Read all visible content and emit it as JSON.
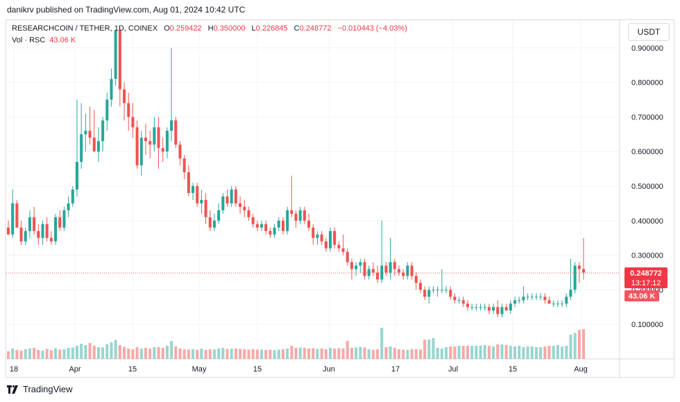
{
  "header": {
    "published": "danikrv published on TradingView.com, Aug 01, 2024 10:42 UTC"
  },
  "legend": {
    "symbol": "RESEARCHCOIN / TETHER, 1D, COINEX",
    "o_label": "O",
    "o_value": "0.259422",
    "h_label": "H",
    "h_value": "0.350000",
    "l_label": "L",
    "l_value": "0.226845",
    "c_label": "C",
    "c_value": "0.248772",
    "change": "−0.010443 (−4.03%)",
    "vol_label": "Vol · RSC",
    "vol_value": "43.06 K"
  },
  "currency_button": "USDT",
  "footer": {
    "brand": "TradingView"
  },
  "colors": {
    "up": "#26a69a",
    "down": "#ef5350",
    "up_vol": "#99d5cf",
    "down_vol": "#f7a9a7",
    "grid": "#f0f3fa"
  },
  "chart_data": {
    "type": "candlestick",
    "y_ticks": [
      "0.100000",
      "0.200000",
      "0.300000",
      "0.400000",
      "0.500000",
      "0.600000",
      "0.700000",
      "0.800000",
      "0.900000"
    ],
    "ylim": [
      0.0,
      0.98
    ],
    "x_ticks": [
      "18",
      "Apr",
      "15",
      "May",
      "15",
      "Jun",
      "17",
      "Jul",
      "15",
      "Aug"
    ],
    "last_price": "0.248772",
    "countdown": "13:17:12",
    "last_volume": "43.06 K",
    "ohlc": [
      [
        0.38,
        0.4,
        0.36,
        0.36
      ],
      [
        0.36,
        0.49,
        0.35,
        0.45
      ],
      [
        0.45,
        0.46,
        0.38,
        0.38
      ],
      [
        0.38,
        0.4,
        0.33,
        0.34
      ],
      [
        0.34,
        0.38,
        0.33,
        0.37
      ],
      [
        0.37,
        0.43,
        0.35,
        0.41
      ],
      [
        0.41,
        0.44,
        0.36,
        0.37
      ],
      [
        0.37,
        0.39,
        0.33,
        0.35
      ],
      [
        0.35,
        0.4,
        0.33,
        0.39
      ],
      [
        0.39,
        0.41,
        0.34,
        0.35
      ],
      [
        0.35,
        0.37,
        0.33,
        0.34
      ],
      [
        0.34,
        0.42,
        0.33,
        0.41
      ],
      [
        0.41,
        0.43,
        0.37,
        0.38
      ],
      [
        0.38,
        0.44,
        0.37,
        0.43
      ],
      [
        0.43,
        0.47,
        0.41,
        0.45
      ],
      [
        0.45,
        0.5,
        0.44,
        0.49
      ],
      [
        0.49,
        0.75,
        0.47,
        0.57
      ],
      [
        0.57,
        0.74,
        0.55,
        0.65
      ],
      [
        0.65,
        0.71,
        0.6,
        0.66
      ],
      [
        0.66,
        0.73,
        0.62,
        0.64
      ],
      [
        0.64,
        0.72,
        0.6,
        0.6
      ],
      [
        0.6,
        0.67,
        0.57,
        0.63
      ],
      [
        0.63,
        0.7,
        0.6,
        0.69
      ],
      [
        0.69,
        0.77,
        0.66,
        0.75
      ],
      [
        0.75,
        0.84,
        0.73,
        0.81
      ],
      [
        0.81,
        0.95,
        0.79,
        0.95
      ],
      [
        0.95,
        0.96,
        0.73,
        0.78
      ],
      [
        0.78,
        0.8,
        0.69,
        0.74
      ],
      [
        0.74,
        0.77,
        0.66,
        0.7
      ],
      [
        0.7,
        0.74,
        0.64,
        0.67
      ],
      [
        0.67,
        0.69,
        0.55,
        0.56
      ],
      [
        0.56,
        0.66,
        0.53,
        0.64
      ],
      [
        0.64,
        0.68,
        0.59,
        0.63
      ],
      [
        0.63,
        0.66,
        0.58,
        0.62
      ],
      [
        0.62,
        0.7,
        0.6,
        0.67
      ],
      [
        0.67,
        0.7,
        0.55,
        0.61
      ],
      [
        0.61,
        0.64,
        0.57,
        0.6
      ],
      [
        0.6,
        0.67,
        0.58,
        0.66
      ],
      [
        0.66,
        0.9,
        0.63,
        0.69
      ],
      [
        0.69,
        0.7,
        0.61,
        0.62
      ],
      [
        0.62,
        0.63,
        0.56,
        0.58
      ],
      [
        0.58,
        0.59,
        0.52,
        0.54
      ],
      [
        0.54,
        0.56,
        0.47,
        0.48
      ],
      [
        0.48,
        0.51,
        0.46,
        0.5
      ],
      [
        0.5,
        0.51,
        0.44,
        0.45
      ],
      [
        0.45,
        0.49,
        0.42,
        0.46
      ],
      [
        0.46,
        0.48,
        0.39,
        0.41
      ],
      [
        0.41,
        0.43,
        0.37,
        0.38
      ],
      [
        0.38,
        0.42,
        0.37,
        0.4
      ],
      [
        0.4,
        0.45,
        0.39,
        0.43
      ],
      [
        0.43,
        0.48,
        0.42,
        0.47
      ],
      [
        0.47,
        0.49,
        0.44,
        0.45
      ],
      [
        0.45,
        0.5,
        0.44,
        0.49
      ],
      [
        0.49,
        0.5,
        0.44,
        0.45
      ],
      [
        0.45,
        0.47,
        0.42,
        0.44
      ],
      [
        0.44,
        0.46,
        0.41,
        0.43
      ],
      [
        0.43,
        0.44,
        0.4,
        0.41
      ],
      [
        0.41,
        0.42,
        0.38,
        0.39
      ],
      [
        0.39,
        0.4,
        0.37,
        0.38
      ],
      [
        0.38,
        0.4,
        0.37,
        0.39
      ],
      [
        0.39,
        0.4,
        0.36,
        0.37
      ],
      [
        0.37,
        0.38,
        0.35,
        0.36
      ],
      [
        0.36,
        0.39,
        0.35,
        0.38
      ],
      [
        0.38,
        0.41,
        0.37,
        0.4
      ],
      [
        0.4,
        0.41,
        0.36,
        0.37
      ],
      [
        0.37,
        0.44,
        0.36,
        0.43
      ],
      [
        0.43,
        0.53,
        0.41,
        0.42
      ],
      [
        0.42,
        0.43,
        0.38,
        0.4
      ],
      [
        0.4,
        0.44,
        0.39,
        0.43
      ],
      [
        0.43,
        0.44,
        0.39,
        0.4
      ],
      [
        0.4,
        0.42,
        0.37,
        0.38
      ],
      [
        0.38,
        0.39,
        0.33,
        0.35
      ],
      [
        0.35,
        0.37,
        0.33,
        0.36
      ],
      [
        0.36,
        0.37,
        0.33,
        0.34
      ],
      [
        0.34,
        0.35,
        0.31,
        0.32
      ],
      [
        0.32,
        0.38,
        0.31,
        0.37
      ],
      [
        0.37,
        0.38,
        0.32,
        0.33
      ],
      [
        0.33,
        0.34,
        0.31,
        0.32
      ],
      [
        0.32,
        0.36,
        0.3,
        0.31
      ],
      [
        0.31,
        0.32,
        0.27,
        0.28
      ],
      [
        0.28,
        0.29,
        0.23,
        0.26
      ],
      [
        0.26,
        0.28,
        0.24,
        0.27
      ],
      [
        0.27,
        0.29,
        0.25,
        0.28
      ],
      [
        0.28,
        0.29,
        0.23,
        0.24
      ],
      [
        0.24,
        0.27,
        0.23,
        0.26
      ],
      [
        0.26,
        0.28,
        0.24,
        0.25
      ],
      [
        0.25,
        0.27,
        0.22,
        0.23
      ],
      [
        0.23,
        0.4,
        0.22,
        0.27
      ],
      [
        0.27,
        0.28,
        0.24,
        0.25
      ],
      [
        0.25,
        0.35,
        0.23,
        0.28
      ],
      [
        0.28,
        0.29,
        0.24,
        0.26
      ],
      [
        0.26,
        0.27,
        0.24,
        0.25
      ],
      [
        0.25,
        0.26,
        0.23,
        0.24
      ],
      [
        0.24,
        0.28,
        0.23,
        0.27
      ],
      [
        0.27,
        0.28,
        0.23,
        0.24
      ],
      [
        0.24,
        0.25,
        0.2,
        0.22
      ],
      [
        0.22,
        0.23,
        0.19,
        0.2
      ],
      [
        0.2,
        0.21,
        0.17,
        0.18
      ],
      [
        0.18,
        0.21,
        0.16,
        0.2
      ],
      [
        0.2,
        0.21,
        0.19,
        0.2
      ],
      [
        0.2,
        0.21,
        0.18,
        0.2
      ],
      [
        0.2,
        0.26,
        0.19,
        0.2
      ],
      [
        0.2,
        0.21,
        0.19,
        0.2
      ],
      [
        0.2,
        0.21,
        0.17,
        0.18
      ],
      [
        0.18,
        0.19,
        0.16,
        0.17
      ],
      [
        0.17,
        0.18,
        0.16,
        0.17
      ],
      [
        0.17,
        0.18,
        0.15,
        0.16
      ],
      [
        0.16,
        0.17,
        0.14,
        0.15
      ],
      [
        0.15,
        0.16,
        0.14,
        0.15
      ],
      [
        0.15,
        0.16,
        0.14,
        0.15
      ],
      [
        0.15,
        0.16,
        0.14,
        0.15
      ],
      [
        0.15,
        0.16,
        0.14,
        0.15
      ],
      [
        0.15,
        0.16,
        0.13,
        0.14
      ],
      [
        0.14,
        0.16,
        0.13,
        0.15
      ],
      [
        0.15,
        0.17,
        0.12,
        0.13
      ],
      [
        0.13,
        0.16,
        0.12,
        0.15
      ],
      [
        0.15,
        0.16,
        0.14,
        0.14
      ],
      [
        0.14,
        0.17,
        0.13,
        0.16
      ],
      [
        0.16,
        0.18,
        0.15,
        0.17
      ],
      [
        0.17,
        0.18,
        0.16,
        0.17
      ],
      [
        0.17,
        0.21,
        0.16,
        0.18
      ],
      [
        0.18,
        0.19,
        0.17,
        0.18
      ],
      [
        0.18,
        0.19,
        0.17,
        0.18
      ],
      [
        0.18,
        0.19,
        0.17,
        0.18
      ],
      [
        0.18,
        0.19,
        0.17,
        0.18
      ],
      [
        0.18,
        0.19,
        0.16,
        0.17
      ],
      [
        0.17,
        0.18,
        0.16,
        0.16
      ],
      [
        0.16,
        0.17,
        0.15,
        0.16
      ],
      [
        0.16,
        0.17,
        0.15,
        0.16
      ],
      [
        0.16,
        0.17,
        0.15,
        0.16
      ],
      [
        0.16,
        0.19,
        0.15,
        0.18
      ],
      [
        0.18,
        0.29,
        0.17,
        0.2
      ],
      [
        0.2,
        0.28,
        0.19,
        0.27
      ],
      [
        0.27,
        0.28,
        0.22,
        0.26
      ],
      [
        0.26,
        0.35,
        0.23,
        0.25
      ]
    ],
    "volume": [
      22,
      30,
      26,
      24,
      28,
      30,
      32,
      26,
      24,
      29,
      25,
      31,
      27,
      28,
      32,
      33,
      38,
      44,
      40,
      46,
      38,
      34,
      33,
      42,
      48,
      55,
      40,
      35,
      30,
      28,
      34,
      30,
      32,
      30,
      34,
      34,
      32,
      38,
      52,
      36,
      30,
      28,
      27,
      28,
      26,
      30,
      26,
      28,
      27,
      30,
      32,
      29,
      30,
      30,
      29,
      28,
      27,
      28,
      27,
      27,
      26,
      27,
      25,
      27,
      28,
      30,
      38,
      32,
      33,
      32,
      30,
      31,
      29,
      30,
      28,
      32,
      30,
      31,
      30,
      52,
      32,
      33,
      35,
      33,
      28,
      26,
      28,
      90,
      34,
      36,
      32,
      28,
      27,
      26,
      28,
      28,
      27,
      56,
      56,
      60,
      32,
      30,
      34,
      36,
      36,
      38,
      38,
      38,
      38,
      38,
      38,
      40,
      38,
      36,
      42,
      42,
      40,
      38,
      36,
      38,
      34,
      36,
      36,
      34,
      34,
      36,
      38,
      38,
      40,
      36,
      38,
      70,
      75,
      84,
      86
    ]
  }
}
